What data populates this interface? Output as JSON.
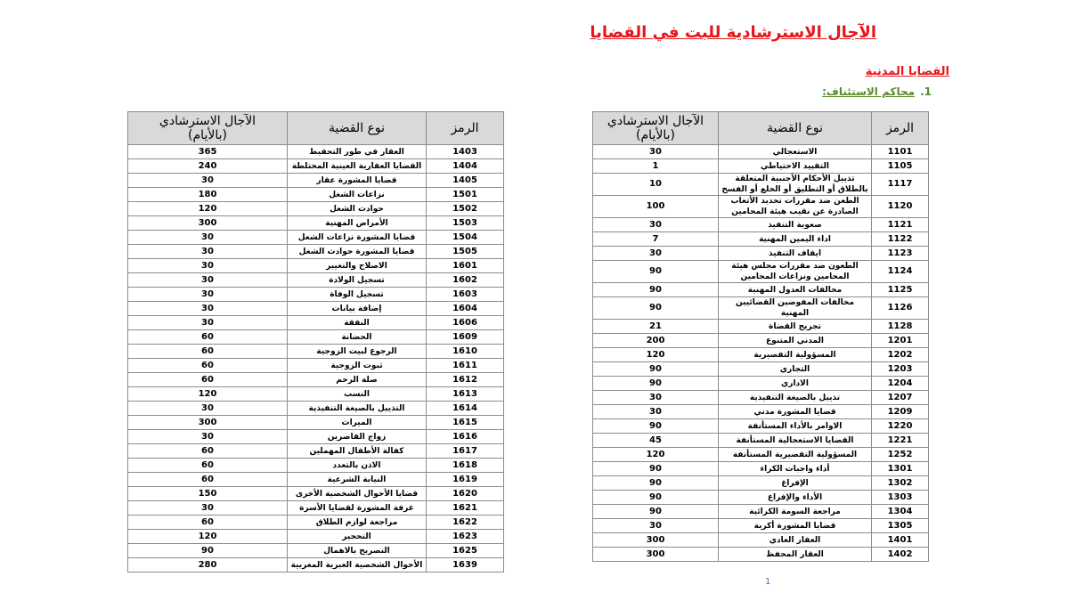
{
  "header": {
    "title": "الآجال الاسترشادية للبت في القضايا"
  },
  "section": {
    "title": "القضايا المدنية",
    "number": "1.",
    "subtitle": "محاكم الاستئناف:"
  },
  "tables": [
    {
      "columns": [
        "الرمز",
        "نوع القضية",
        [
          "الآجال الاسترشادي",
          "(بالأيام)"
        ]
      ],
      "rows": [
        [
          1101,
          "الاستعجالي",
          30
        ],
        [
          1105,
          "التقييد الاحتياطي",
          1
        ],
        [
          1117,
          "تذييل الأحكام الأجنبية المتعلقة بالطلاق أو التطليق أو الخلع أو الفسخ",
          10
        ],
        [
          1120,
          "الطعن ضد مقررات تحديد الأتعاب الصادرة عن نقيب هيئة المحامين",
          100
        ],
        [
          1121,
          "صعوبة التنفيذ",
          30
        ],
        [
          1122,
          "اداء اليمين المهنية",
          7
        ],
        [
          1123,
          "ايقاف التنفيذ",
          30
        ],
        [
          1124,
          "الطعون ضد مقررات مجلس هيئة المحامين ونزاعات المحامين",
          90
        ],
        [
          1125,
          "مخالفات العدول المهنية",
          90
        ],
        [
          1126,
          "مخالفات المفوضين القضائيين المهنية",
          90
        ],
        [
          1128,
          "تجريح القضاة",
          21
        ],
        [
          1201,
          "المدني المتنوع",
          200
        ],
        [
          1202,
          "المسؤولية التقصيرية",
          120
        ],
        [
          1203,
          "التجاري",
          90
        ],
        [
          1204,
          "الاداري",
          90
        ],
        [
          1207,
          "تذييل بالصيغة التنفيذية",
          30
        ],
        [
          1209,
          "قضايا المشورة مدني",
          30
        ],
        [
          1220,
          "الاوامر بالأداء المستأنفة",
          90
        ],
        [
          1221,
          "القضايا الاستعجالية المستأنفة",
          45
        ],
        [
          1252,
          "المسؤولية التقصيرية المستأنفة",
          120
        ],
        [
          1301,
          "أداء واجبات الكراء",
          90
        ],
        [
          1302,
          "الإفراغ",
          90
        ],
        [
          1303,
          "الأداء والإفراغ",
          90
        ],
        [
          1304,
          "مراجعة السومة الكرائية",
          90
        ],
        [
          1305,
          "قضايا المشورة أكرية",
          30
        ],
        [
          1401,
          "العقار العادي",
          300
        ],
        [
          1402,
          "العقار المحفظ",
          300
        ]
      ]
    },
    {
      "columns": [
        "الرمز",
        "نوع القضية",
        [
          "الآجال الاسترشادي",
          "(بالأيام)"
        ]
      ],
      "rows": [
        [
          1403,
          "العقار في طور التحفيظ",
          365
        ],
        [
          1404,
          "القضايا العقارية العينية المختلطة",
          240
        ],
        [
          1405,
          "قضايا المشورة عقار",
          30
        ],
        [
          1501,
          "نزاعات الشغل",
          180
        ],
        [
          1502,
          "حوادث الشغل",
          120
        ],
        [
          1503,
          "الأمراض المهنية",
          300
        ],
        [
          1504,
          "قضايا المشورة نزاعات الشغل",
          30
        ],
        [
          1505,
          "قضايا المشورة حوادث الشغل",
          30
        ],
        [
          1601,
          "الاصلاح والتغيير",
          30
        ],
        [
          1602,
          "تسجيل الولادة",
          30
        ],
        [
          1603,
          "تسجيل الوفاة",
          30
        ],
        [
          1604,
          "إضافة بيانات",
          30
        ],
        [
          1606,
          "النفقة",
          30
        ],
        [
          1609,
          "الحضانة",
          60
        ],
        [
          1610,
          "الرجوع لبيت الزوجية",
          60
        ],
        [
          1611,
          "ثبوت الزوجية",
          60
        ],
        [
          1612,
          "صلة الرحم",
          60
        ],
        [
          1613,
          "النسب",
          120
        ],
        [
          1614,
          "التذييل بالصيغة التنفيذية",
          30
        ],
        [
          1615,
          "الميراث",
          300
        ],
        [
          1616,
          "زواج القاصرين",
          30
        ],
        [
          1617,
          "كفالة الأطفال المهملين",
          60
        ],
        [
          1618,
          "الاذن بالتعدد",
          60
        ],
        [
          1619,
          "النيابة الشرعية",
          60
        ],
        [
          1620,
          "قضايا الأحوال الشخصية الأخرى",
          150
        ],
        [
          1621,
          "غرفة المشورة لقضايا الأسرة",
          30
        ],
        [
          1622,
          "مراجعة لوازم الطلاق",
          60
        ],
        [
          1623,
          "التحجير",
          120
        ],
        [
          1625,
          "التصريح بالاهمال",
          90
        ],
        [
          1639,
          "الأحوال الشخصية العبرية المغربية",
          280
        ]
      ]
    }
  ],
  "page_number": "1"
}
